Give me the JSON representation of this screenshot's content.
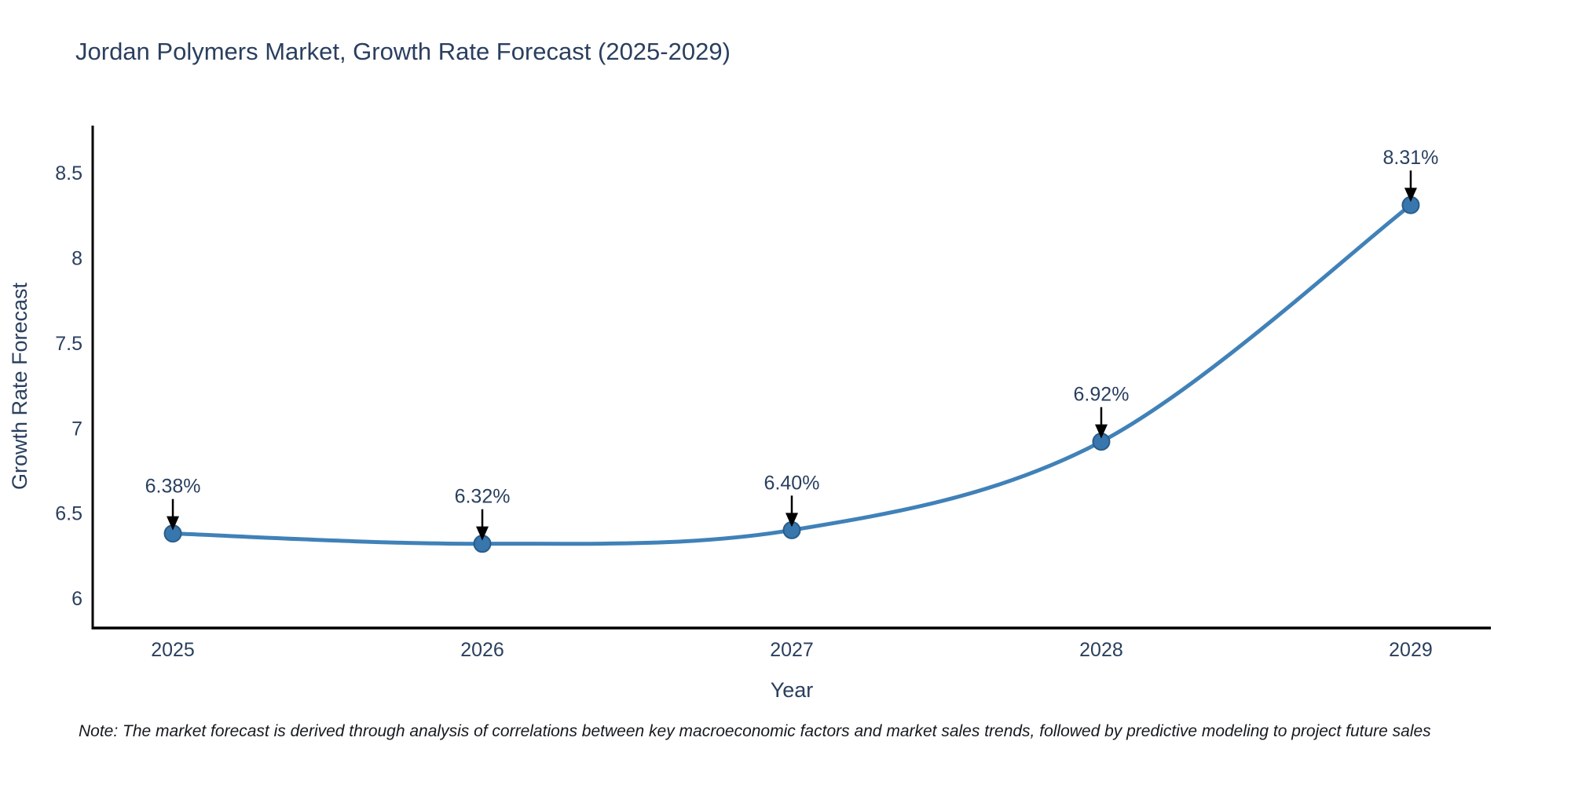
{
  "header": {
    "title": "Jordan Polymers Market, Growth Rate Forecast (2025-2029)"
  },
  "chart_data": {
    "type": "line",
    "title": "Jordan Polymers Market, Growth Rate Forecast (2025-2029)",
    "xlabel": "Year",
    "ylabel": "Growth Rate Forecast",
    "x": [
      2025,
      2026,
      2027,
      2028,
      2029
    ],
    "series": [
      {
        "name": "Growth Rate Forecast",
        "values": [
          6.38,
          6.32,
          6.4,
          6.92,
          8.31
        ],
        "point_labels": [
          "6.38%",
          "6.32%",
          "6.40%",
          "6.92%",
          "8.31%"
        ]
      }
    ],
    "xtick_labels": [
      "2025",
      "2026",
      "2027",
      "2028",
      "2029"
    ],
    "ytick_values": [
      6,
      6.5,
      7,
      7.5,
      8,
      8.5
    ],
    "ytick_labels": [
      "6",
      "6.5",
      "7",
      "7.5",
      "8",
      "8.5"
    ],
    "xlim": [
      2024.741,
      2029.259
    ],
    "ylim": [
      5.825,
      8.777
    ],
    "grid": false,
    "legend": "none",
    "line_shape": "spline",
    "annotation_style": "value labels above points with downward black arrows",
    "colors": {
      "line": "#4081b8",
      "marker": "#3876ae",
      "marker_edge": "#2a5d88",
      "axis": "#000000",
      "arrow": "#000000",
      "text": "#2a3f5f"
    }
  },
  "footnote": {
    "text": "Note: The market forecast is derived through analysis of correlations between key macroeconomic factors and market sales trends, followed by predictive modeling to project future sales"
  }
}
